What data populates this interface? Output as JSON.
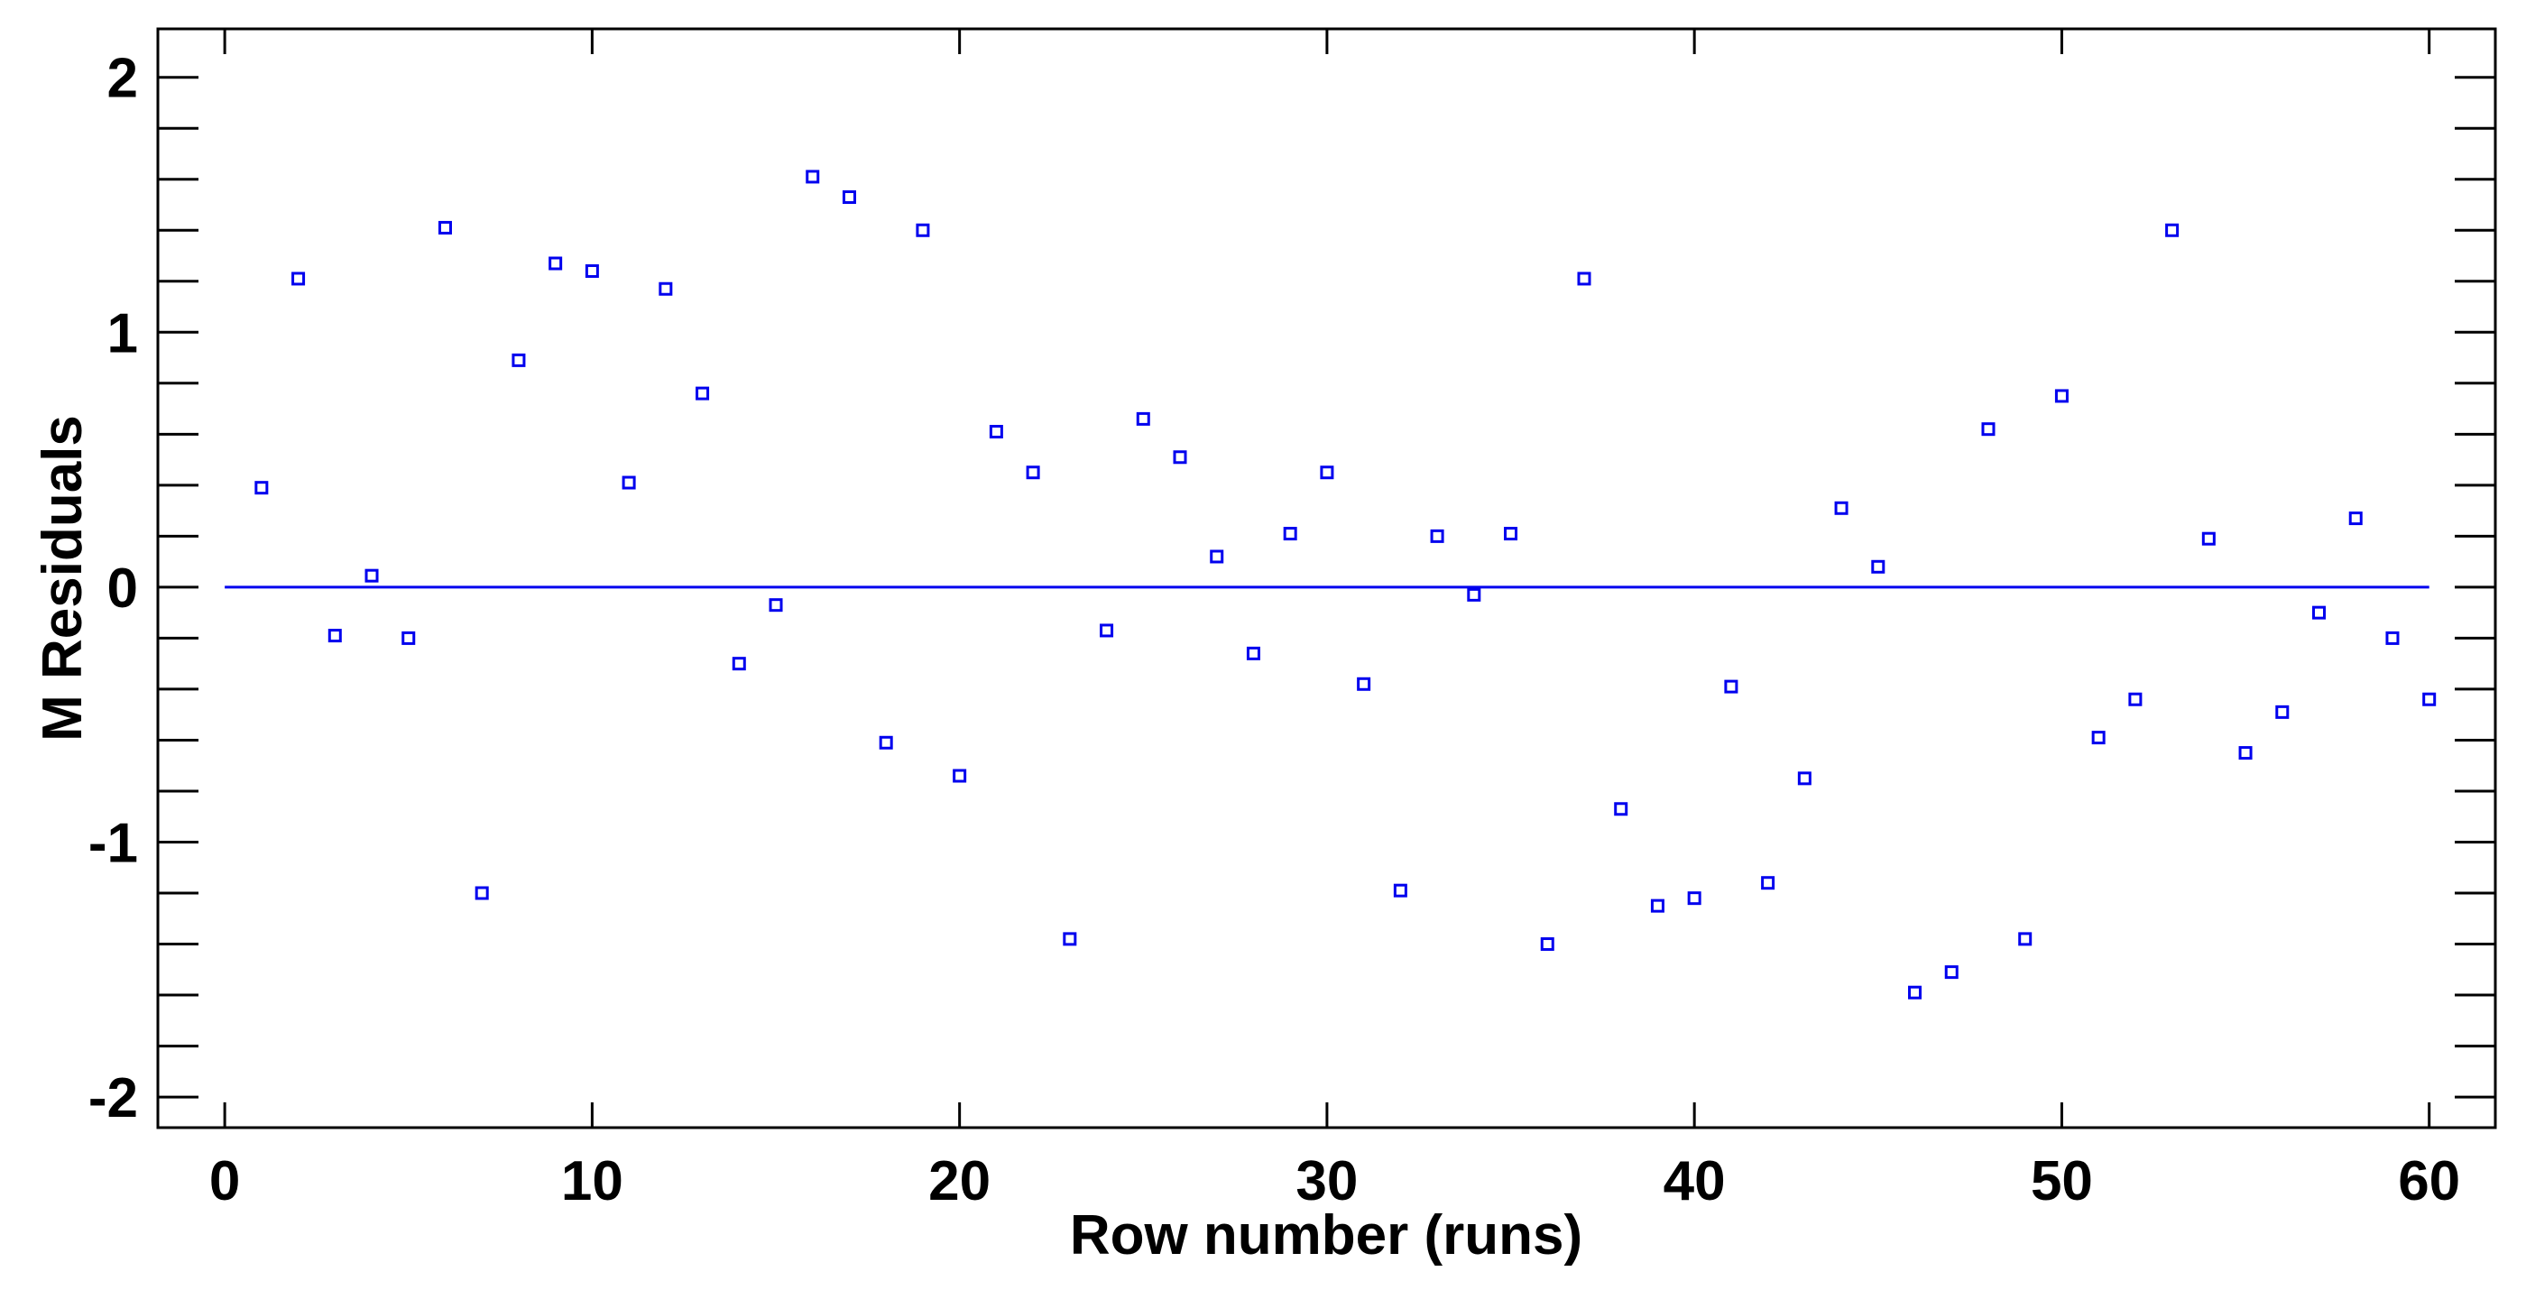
{
  "chart_data": {
    "type": "scatter",
    "xlabel": "Row number (runs)",
    "ylabel": "M Residuals",
    "x": [
      1,
      2,
      3,
      4,
      5,
      6,
      7,
      8,
      9,
      10,
      11,
      12,
      13,
      14,
      15,
      16,
      17,
      18,
      19,
      20,
      21,
      22,
      23,
      24,
      25,
      26,
      27,
      28,
      29,
      30,
      31,
      32,
      33,
      34,
      35,
      36,
      37,
      38,
      39,
      40,
      41,
      42,
      43,
      44,
      45,
      46,
      47,
      48,
      49,
      50,
      51,
      52,
      53,
      54,
      55,
      56,
      57,
      58,
      59,
      60
    ],
    "series": [
      {
        "name": "Residuals",
        "color": "#0000ee",
        "values": [
          0.39,
          1.21,
          -0.19,
          0.045,
          -0.2,
          1.41,
          -1.2,
          0.89,
          1.27,
          1.24,
          0.41,
          1.17,
          0.76,
          -0.3,
          -0.07,
          1.61,
          1.53,
          -0.61,
          1.4,
          -0.74,
          0.61,
          0.45,
          -1.38,
          -0.17,
          0.66,
          0.51,
          0.12,
          -0.26,
          0.21,
          0.45,
          -0.38,
          -1.19,
          0.2,
          -0.03,
          0.21,
          -1.4,
          1.21,
          -0.87,
          -1.25,
          -1.22,
          -0.39,
          -1.16,
          -0.75,
          0.31,
          0.08,
          -1.59,
          -1.51,
          0.62,
          -1.38,
          0.75,
          -0.59,
          -0.44,
          1.4,
          0.19,
          -0.65,
          -0.49,
          -0.1,
          0.27,
          -0.2,
          -0.44
        ]
      }
    ],
    "hline": {
      "y": 0,
      "x": [
        0,
        60
      ],
      "color": "#0000ee"
    },
    "xlim": [
      -1.82,
      61.8
    ],
    "ylim": [
      -2.12,
      2.19
    ],
    "xticks": [
      0,
      10,
      20,
      30,
      40,
      50,
      60
    ],
    "yticks": [
      -2,
      -1,
      0,
      1,
      2
    ],
    "yminor_ticks": [
      -1.8,
      -1.6,
      -1.4,
      -1.2,
      -0.8,
      -0.6,
      -0.4,
      -0.2,
      0.2,
      0.4,
      0.6,
      0.8,
      1.2,
      1.4,
      1.6,
      1.8
    ]
  }
}
